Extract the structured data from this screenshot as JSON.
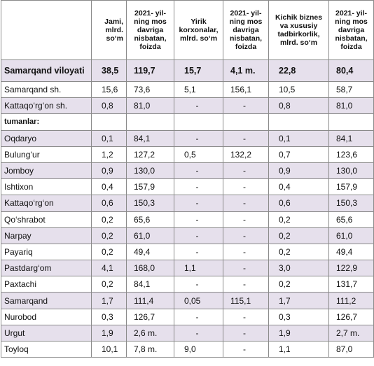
{
  "headers": [
    "",
    "Jami, mlrd. so‘m",
    "2021- yil-ning mos davriga nisbatan, foizda",
    "Yirik korxonalar, mlrd. so‘m",
    "2021- yil-ning mos davriga nisbatan, foizda",
    "Kichik biznes va xususiy tadbirkorlik, mlrd. so‘m",
    "2021- yil-ning mos davriga nisbatan, foizda"
  ],
  "rows": [
    {
      "type": "total",
      "cells": [
        "Samarqand viloyati",
        "38,5",
        "119,7",
        "15,7",
        "4,1  m.",
        "22,8",
        "80,4"
      ]
    },
    {
      "type": "data",
      "cells": [
        "Samarqand sh.",
        "15,6",
        "73,6",
        "5,1",
        "156,1",
        "10,5",
        "58,7"
      ]
    },
    {
      "type": "shade",
      "cells": [
        "Kattaqo‘rg‘on  sh.",
        "0,8",
        "81,0",
        "-",
        "-",
        "0,8",
        "81,0"
      ]
    },
    {
      "type": "sub",
      "cells": [
        "tumanlar:",
        "",
        "",
        "",
        "",
        "",
        ""
      ]
    },
    {
      "type": "shade",
      "cells": [
        "Oqdaryo",
        "0,1",
        "84,1",
        "-",
        "-",
        "0,1",
        "84,1"
      ]
    },
    {
      "type": "data",
      "cells": [
        "Bulung‘ur",
        "1,2",
        "127,2",
        "0,5",
        "132,2",
        "0,7",
        "123,6"
      ]
    },
    {
      "type": "shade",
      "cells": [
        "Jomboy",
        "0,9",
        "130,0",
        "-",
        "-",
        "0,9",
        "130,0"
      ]
    },
    {
      "type": "data",
      "cells": [
        "Ishtixon",
        "0,4",
        "157,9",
        "-",
        "-",
        "0,4",
        "157,9"
      ]
    },
    {
      "type": "shade",
      "cells": [
        "Kattaqo‘rg‘on",
        "0,6",
        "150,3",
        "-",
        "-",
        "0,6",
        "150,3"
      ]
    },
    {
      "type": "data",
      "cells": [
        "Qo‘shrabot",
        "0,2",
        "65,6",
        "-",
        "-",
        "0,2",
        "65,6"
      ]
    },
    {
      "type": "shade",
      "cells": [
        "Narpay",
        "0,2",
        "61,0",
        "-",
        "-",
        "0,2",
        "61,0"
      ]
    },
    {
      "type": "data",
      "cells": [
        "Payariq",
        "0,2",
        "49,4",
        "-",
        "-",
        "0,2",
        "49,4"
      ]
    },
    {
      "type": "shade",
      "cells": [
        "Pastdarg‘om",
        "4,1",
        "168,0",
        "1,1",
        "-",
        "3,0",
        "122,9"
      ]
    },
    {
      "type": "data",
      "cells": [
        "Paxtachi",
        "0,2",
        "84,1",
        "-",
        "-",
        "0,2",
        "131,7"
      ]
    },
    {
      "type": "shade",
      "cells": [
        "Samarqand",
        "1,7",
        "111,4",
        "0,05",
        "115,1",
        "1,7",
        "111,2"
      ]
    },
    {
      "type": "data",
      "cells": [
        "Nurobod",
        "0,3",
        "126,7",
        "-",
        "-",
        "0,3",
        "126,7"
      ]
    },
    {
      "type": "shade",
      "cells": [
        "Urgut",
        "1,9",
        "2,6 m.",
        "-",
        "-",
        "1,9",
        "2,7 m."
      ]
    },
    {
      "type": "data",
      "cells": [
        "Toyloq",
        "10,1",
        "7,8 m.",
        "9,0",
        "-",
        "1,1",
        "87,0"
      ]
    }
  ],
  "colors": {
    "shade": "#e6e0ec",
    "border": "#8a8a8a"
  }
}
